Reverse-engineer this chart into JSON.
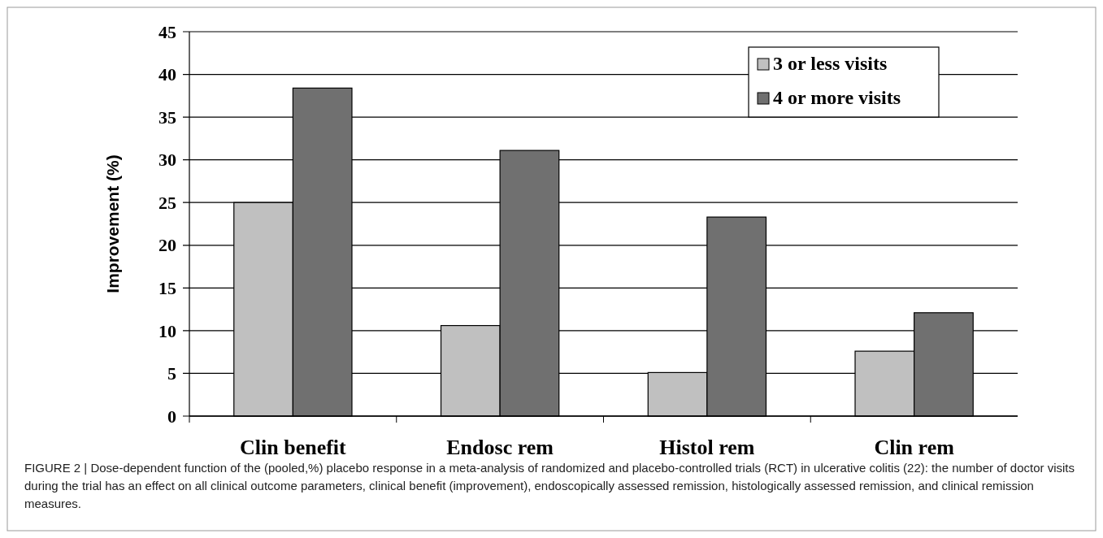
{
  "chart_data": {
    "type": "bar",
    "ylabel": "Improvement (%)",
    "categories": [
      "Clin benefit",
      "Endosc rem",
      "Histol rem",
      "Clin rem"
    ],
    "series": [
      {
        "name": "3 or less visits",
        "color": "#c0c0c0",
        "values": [
          25,
          10.6,
          5.1,
          7.6
        ]
      },
      {
        "name": "4 or more visits",
        "color": "#707070",
        "values": [
          38.4,
          31.1,
          23.3,
          12.1
        ]
      }
    ],
    "ylim": [
      0,
      45
    ],
    "yticks": [
      0,
      5,
      10,
      15,
      20,
      25,
      30,
      35,
      40,
      45
    ],
    "grid": "y",
    "legend": "top right",
    "annotations": [
      "FIGURE 2 | Dose-dependent function of the (pooled,%) placebo response in a meta-analysis of randomized and placebo-controlled trials (RCT) in ulcerative colitis (22): the number of doctor visits during the trial has an effect on all clinical outcome parameters, clinical benefit (improvement), endoscopically assessed remission, histologically assessed remission, and clinical remission measures."
    ]
  }
}
